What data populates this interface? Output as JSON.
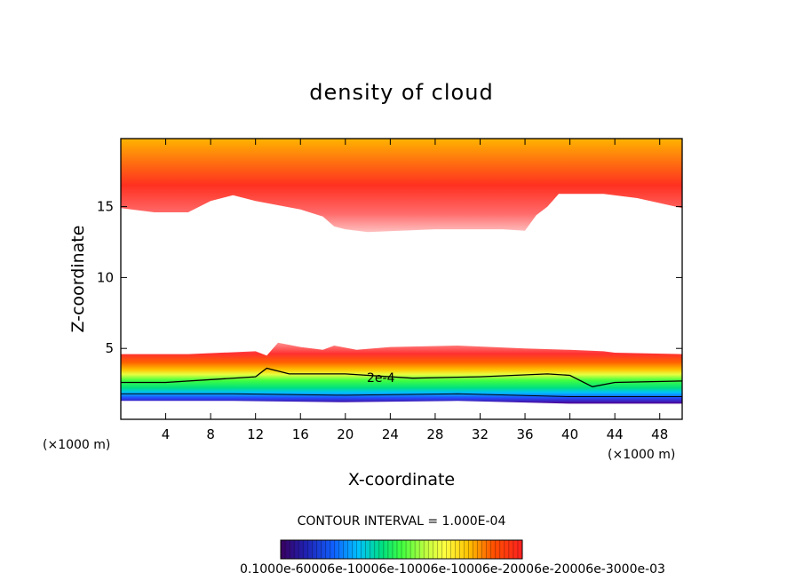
{
  "chart_data": {
    "type": "heatmap",
    "title": "density of cloud",
    "xlabel": "X-coordinate",
    "ylabel": "Z-coordinate",
    "x_unit_left": "(×1000 m)",
    "x_unit_right": "(×1000 m)",
    "xlim": [
      0,
      50
    ],
    "ylim": [
      0,
      19.8
    ],
    "x_ticks": [
      "4",
      "8",
      "12",
      "16",
      "20",
      "24",
      "28",
      "32",
      "36",
      "40",
      "44",
      "48"
    ],
    "x_tick_values": [
      4,
      8,
      12,
      16,
      20,
      24,
      28,
      32,
      36,
      40,
      44,
      48
    ],
    "y_ticks": [
      "5",
      "10",
      "15"
    ],
    "y_tick_values": [
      5,
      10,
      15
    ],
    "contour_label": "2e-4",
    "contour_interval_text": "CONTOUR INTERVAL = 1.000E-04",
    "colorbar_labels": "0.1000e-60006e-10006e-10006e-10006e-20006e-20006e-3000e-03",
    "colormap": [
      "#3a0060",
      "#2020b0",
      "#1060ff",
      "#00c0ff",
      "#00e080",
      "#40ff40",
      "#c0ff40",
      "#ffff40",
      "#ffc000",
      "#ff6000",
      "#ff2020",
      "#ff8080",
      "#ffc0c0"
    ],
    "upper_cloud_base_km": [
      [
        0,
        14.9
      ],
      [
        3,
        14.6
      ],
      [
        6,
        14.6
      ],
      [
        8,
        15.4
      ],
      [
        10,
        15.8
      ],
      [
        12,
        15.4
      ],
      [
        16,
        14.8
      ],
      [
        18,
        14.3
      ],
      [
        19,
        13.6
      ],
      [
        20,
        13.4
      ],
      [
        22,
        13.2
      ],
      [
        28,
        13.4
      ],
      [
        34,
        13.4
      ],
      [
        36,
        13.3
      ],
      [
        37,
        14.4
      ],
      [
        38,
        15.0
      ],
      [
        39,
        15.9
      ],
      [
        43,
        15.9
      ],
      [
        46,
        15.6
      ],
      [
        50,
        14.9
      ]
    ],
    "low_cloud_top_km": [
      [
        0,
        4.6
      ],
      [
        6,
        4.6
      ],
      [
        12,
        4.8
      ],
      [
        13,
        4.5
      ],
      [
        14,
        5.4
      ],
      [
        16,
        5.1
      ],
      [
        18,
        4.9
      ],
      [
        19,
        5.2
      ],
      [
        21,
        4.9
      ],
      [
        24,
        5.1
      ],
      [
        30,
        5.2
      ],
      [
        36,
        5.0
      ],
      [
        40,
        4.9
      ],
      [
        43,
        4.8
      ],
      [
        44,
        4.7
      ],
      [
        50,
        4.6
      ]
    ],
    "contour_2e-4_km": [
      [
        0,
        2.6
      ],
      [
        4,
        2.6
      ],
      [
        8,
        2.8
      ],
      [
        12,
        3.0
      ],
      [
        13,
        3.6
      ],
      [
        15,
        3.2
      ],
      [
        20,
        3.2
      ],
      [
        26,
        2.9
      ],
      [
        32,
        3.0
      ],
      [
        38,
        3.2
      ],
      [
        40,
        3.1
      ],
      [
        42,
        2.3
      ],
      [
        44,
        2.6
      ],
      [
        50,
        2.7
      ]
    ],
    "low_cloud_base_km": [
      [
        0,
        1.3
      ],
      [
        10,
        1.3
      ],
      [
        20,
        1.2
      ],
      [
        30,
        1.3
      ],
      [
        40,
        1.1
      ],
      [
        50,
        1.1
      ]
    ]
  }
}
